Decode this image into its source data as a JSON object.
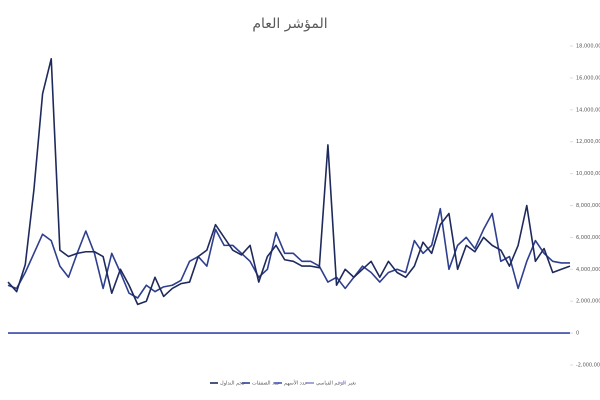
{
  "chart_data": {
    "type": "line",
    "title": "المؤشر العام",
    "categories": [
      null,
      null,
      null,
      null,
      null,
      null,
      null,
      null,
      null,
      null,
      null,
      null,
      null,
      null,
      null,
      null,
      null,
      null,
      null,
      null,
      null,
      null,
      null,
      null,
      null,
      null,
      null,
      null,
      null,
      null,
      null,
      null,
      null,
      null,
      null,
      null,
      null,
      null,
      null,
      null,
      null,
      null,
      null,
      null,
      null,
      null,
      null,
      null,
      null,
      null,
      null,
      null,
      null,
      null,
      null,
      null,
      null,
      null,
      null,
      null,
      null,
      null,
      null,
      null,
      null,
      null
    ],
    "series": [
      {
        "name": "حجم التداول",
        "color": "#1f2a5c",
        "values": [
          3200000,
          2600000,
          4300000,
          9000000,
          15000000,
          17200000,
          5200000,
          4800000,
          5000000,
          5100000,
          5100000,
          4800000,
          2500000,
          4000000,
          3000000,
          1800000,
          2000000,
          3500000,
          2300000,
          2800000,
          3100000,
          3200000,
          4800000,
          5200000,
          6800000,
          6000000,
          5200000,
          4900000,
          5500000,
          3200000,
          4800000,
          5500000,
          4600000,
          4500000,
          4200000,
          4200000,
          4100000,
          11800000,
          3000000,
          4000000,
          3500000,
          4000000,
          4500000,
          3500000,
          4500000,
          3800000,
          3500000,
          4200000,
          5700000,
          5000000,
          6800000,
          7500000,
          4000000,
          5500000,
          5100000,
          6000000,
          5500000,
          5200000,
          4200000,
          5500000,
          8000000,
          4500000,
          5300000,
          3800000,
          4000000,
          4200000
        ]
      },
      {
        "name": "عدد الصفقات",
        "color": "#2e3f8f",
        "values": [
          3000000,
          2800000,
          3800000,
          5000000,
          6200000,
          5800000,
          4200000,
          3500000,
          5000000,
          6400000,
          5000000,
          2800000,
          5000000,
          3800000,
          2500000,
          2200000,
          3000000,
          2600000,
          2900000,
          3000000,
          3300000,
          4500000,
          4800000,
          4200000,
          6500000,
          5500000,
          5500000,
          5000000,
          4500000,
          3500000,
          4000000,
          6300000,
          5000000,
          5000000,
          4500000,
          4500000,
          4200000,
          3200000,
          3500000,
          2800000,
          3500000,
          4200000,
          3800000,
          3200000,
          3800000,
          4000000,
          3800000,
          5800000,
          5000000,
          5500000,
          7800000,
          4000000,
          5500000,
          6000000,
          5300000,
          6500000,
          7500000,
          4500000,
          4800000,
          2800000,
          4500000,
          5800000,
          5000000,
          4500000,
          4400000,
          4400000
        ]
      },
      {
        "name": "عدد الأسهم",
        "color": "#4a5ab5",
        "values": [
          0,
          0,
          0,
          0,
          0,
          0,
          0,
          0,
          0,
          0,
          0,
          0,
          0,
          0,
          0,
          0,
          0,
          0,
          0,
          0,
          0,
          0,
          0,
          0,
          0,
          0,
          0,
          0,
          0,
          0,
          0,
          0,
          0,
          0,
          0,
          0,
          0,
          0,
          0,
          0,
          0,
          0,
          0,
          0,
          0,
          0,
          0,
          0,
          0,
          0,
          0,
          0,
          0,
          0,
          0,
          0,
          0,
          0,
          0,
          0,
          0,
          0,
          0,
          0,
          0,
          0
        ]
      },
      {
        "name": "الرقم القياسي",
        "color": "#8c8fd0",
        "values": [
          0,
          0,
          0,
          0,
          0,
          0,
          0,
          0,
          0,
          0,
          0,
          0,
          0,
          0,
          0,
          0,
          0,
          0,
          0,
          0,
          0,
          0,
          0,
          0,
          0,
          0,
          0,
          0,
          0,
          0,
          0,
          0,
          0,
          0,
          0,
          0,
          0,
          0,
          0,
          0,
          0,
          0,
          0,
          0,
          0,
          0,
          0,
          0,
          0,
          0,
          0,
          0,
          0,
          0,
          0,
          0,
          0,
          0,
          0,
          0,
          0,
          0,
          0,
          0,
          0,
          0
        ]
      },
      {
        "name": "تغير",
        "color": "#b9b3e0",
        "values": [
          0,
          0,
          0,
          0,
          0,
          0,
          0,
          0,
          0,
          0,
          0,
          0,
          0,
          0,
          0,
          0,
          0,
          0,
          0,
          0,
          0,
          0,
          0,
          0,
          0,
          0,
          0,
          0,
          0,
          0,
          0,
          0,
          0,
          0,
          0,
          0,
          0,
          0,
          0,
          0,
          0,
          0,
          0,
          0,
          0,
          0,
          0,
          0,
          0,
          0,
          0,
          0,
          0,
          0,
          0,
          0,
          0,
          0,
          0,
          0,
          0,
          0,
          0,
          0,
          0,
          0
        ]
      }
    ],
    "ylim": [
      -2000000,
      18000000
    ],
    "yticks": [
      {
        "value": -2000000,
        "label": "-2,000,000"
      },
      0,
      {
        "value": 2000000,
        "label": "2,000,000"
      },
      {
        "value": 4000000,
        "label": "4,000,000"
      },
      {
        "value": 6000000,
        "label": "6,000,000"
      },
      {
        "value": 8000000,
        "label": "8,000,000"
      },
      {
        "value": 10000000,
        "label": "10,000,000"
      },
      {
        "value": 12000000,
        "label": "12,000,000"
      },
      {
        "value": 14000000,
        "label": "14,000,000"
      },
      {
        "value": 16000000,
        "label": "16,000,000"
      },
      {
        "value": 18000000,
        "label": "18,000,000"
      }
    ],
    "grid": false,
    "legend": "bottom"
  }
}
